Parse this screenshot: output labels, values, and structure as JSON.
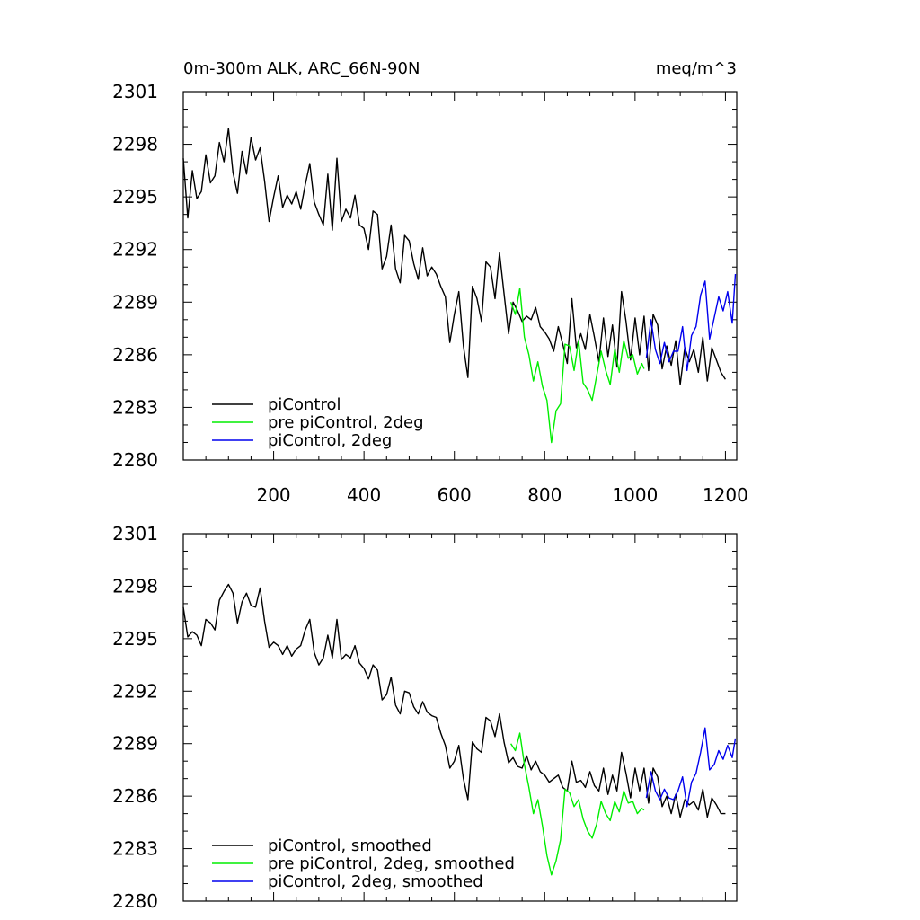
{
  "header": {
    "left_title": "0m-300m ALK, ARC_66N-90N",
    "right_title": "meq/m^3"
  },
  "colors": {
    "piControl": "#000000",
    "pre_piControl_2deg": "#00ee00",
    "piControl_2deg": "#0000ee"
  },
  "chart_data": [
    {
      "type": "line",
      "title": "0m-300m ALK, ARC_66N-90N",
      "units_label": "meq/m^3",
      "xlim": [
        0,
        1225
      ],
      "ylim": [
        2280,
        2301
      ],
      "x_ticks": [
        200,
        400,
        600,
        800,
        1000,
        1200
      ],
      "x_tick_labels": [
        "200",
        "400",
        "600",
        "800",
        "1000",
        "1200"
      ],
      "y_ticks": [
        2280,
        2283,
        2286,
        2289,
        2292,
        2295,
        2298,
        2301
      ],
      "y_tick_labels": [
        "2280",
        "2283",
        "2286",
        "2289",
        "2292",
        "2295",
        "2298",
        "2301"
      ],
      "grid": false,
      "legend": "bottom-left",
      "series": [
        {
          "name": "piControl",
          "color": "#000000",
          "x": [
            0,
            10,
            20,
            30,
            40,
            50,
            60,
            70,
            80,
            90,
            100,
            110,
            120,
            130,
            140,
            150,
            160,
            170,
            180,
            190,
            200,
            210,
            220,
            230,
            240,
            250,
            260,
            270,
            280,
            290,
            300,
            310,
            320,
            330,
            340,
            350,
            360,
            370,
            380,
            390,
            400,
            410,
            420,
            430,
            440,
            450,
            460,
            470,
            480,
            490,
            500,
            510,
            520,
            530,
            540,
            550,
            560,
            570,
            580,
            590,
            600,
            610,
            620,
            630,
            640,
            650,
            660,
            670,
            680,
            690,
            700,
            710,
            720,
            730,
            740,
            750,
            760,
            770,
            780,
            790,
            800,
            810,
            820,
            830,
            840,
            850,
            860,
            870,
            880,
            890,
            900,
            910,
            920,
            930,
            940,
            950,
            960,
            970,
            980,
            990,
            1000,
            1010,
            1020,
            1030,
            1040,
            1050,
            1060,
            1070,
            1080,
            1090,
            1100,
            1110,
            1120,
            1130,
            1140,
            1150,
            1160,
            1170,
            1180,
            1190,
            1200
          ],
          "values": [
            2297.2,
            2293.8,
            2296.5,
            2294.9,
            2295.3,
            2297.4,
            2295.8,
            2296.2,
            2298.1,
            2297.0,
            2298.9,
            2296.4,
            2295.2,
            2297.6,
            2296.3,
            2298.4,
            2297.1,
            2297.8,
            2295.9,
            2293.6,
            2295.0,
            2296.2,
            2294.4,
            2295.1,
            2294.6,
            2295.3,
            2294.3,
            2295.7,
            2296.9,
            2294.7,
            2294.0,
            2293.4,
            2296.3,
            2293.1,
            2297.2,
            2293.6,
            2294.3,
            2293.8,
            2295.1,
            2293.4,
            2293.2,
            2292.0,
            2294.2,
            2294.0,
            2290.9,
            2291.6,
            2293.4,
            2290.9,
            2290.1,
            2292.8,
            2292.5,
            2291.2,
            2290.3,
            2292.1,
            2290.5,
            2291.0,
            2290.6,
            2289.9,
            2289.3,
            2286.7,
            2288.3,
            2289.6,
            2286.5,
            2284.7,
            2289.9,
            2289.2,
            2287.9,
            2291.3,
            2291.0,
            2289.2,
            2291.8,
            2289.5,
            2287.2,
            2289.0,
            2288.5,
            2287.9,
            2288.2,
            2288.0,
            2288.7,
            2287.6,
            2287.3,
            2286.9,
            2286.2,
            2287.6,
            2286.6,
            2285.5,
            2289.2,
            2286.4,
            2287.2,
            2286.3,
            2288.3,
            2287.0,
            2285.6,
            2288.1,
            2285.9,
            2287.7,
            2285.3,
            2289.6,
            2287.9,
            2285.7,
            2288.1,
            2286.0,
            2288.2,
            2285.1,
            2288.3,
            2287.7,
            2285.2,
            2286.5,
            2285.4,
            2286.8,
            2284.3,
            2286.4,
            2285.6,
            2286.3,
            2285.0,
            2287.0,
            2284.5,
            2286.4,
            2285.7,
            2285.0,
            2284.6
          ]
        },
        {
          "name": "pre piControl, 2deg",
          "color": "#00ee00",
          "x": [
            725,
            735,
            745,
            755,
            765,
            775,
            785,
            795,
            805,
            815,
            825,
            835,
            845,
            855,
            865,
            875,
            885,
            895,
            905,
            915,
            925,
            935,
            945,
            955,
            965,
            975,
            985,
            995,
            1005,
            1015,
            1020
          ],
          "values": [
            2289.0,
            2288.3,
            2289.8,
            2287.0,
            2286.0,
            2284.5,
            2285.6,
            2284.2,
            2283.4,
            2281.0,
            2282.8,
            2283.2,
            2286.6,
            2286.5,
            2285.1,
            2286.8,
            2284.4,
            2284.0,
            2283.4,
            2284.8,
            2286.2,
            2285.1,
            2284.3,
            2286.3,
            2285.0,
            2286.8,
            2285.8,
            2286.0,
            2284.9,
            2285.5,
            2285.2
          ]
        },
        {
          "name": "piControl, 2deg",
          "color": "#0000ee",
          "x": [
            1025,
            1035,
            1045,
            1055,
            1065,
            1075,
            1085,
            1095,
            1105,
            1115,
            1125,
            1135,
            1145,
            1155,
            1165,
            1175,
            1185,
            1195,
            1205,
            1215,
            1222
          ],
          "values": [
            2285.8,
            2288.0,
            2286.3,
            2285.5,
            2286.7,
            2285.6,
            2286.2,
            2286.2,
            2287.6,
            2285.1,
            2287.1,
            2287.6,
            2289.4,
            2290.2,
            2286.9,
            2288.1,
            2289.3,
            2288.5,
            2289.6,
            2287.8,
            2290.6
          ]
        }
      ]
    },
    {
      "type": "line",
      "xlim": [
        0,
        1225
      ],
      "ylim": [
        2280,
        2301
      ],
      "x_ticks": [
        200,
        400,
        600,
        800,
        1000,
        1200
      ],
      "y_ticks": [
        2280,
        2283,
        2286,
        2289,
        2292,
        2295,
        2298,
        2301
      ],
      "y_tick_labels": [
        "2280",
        "2283",
        "2286",
        "2289",
        "2292",
        "2295",
        "2298",
        "2301"
      ],
      "grid": false,
      "legend": "bottom-left",
      "series": [
        {
          "name": "piControl, smoothed",
          "color": "#000000",
          "x": [
            0,
            10,
            20,
            30,
            40,
            50,
            60,
            70,
            80,
            90,
            100,
            110,
            120,
            130,
            140,
            150,
            160,
            170,
            180,
            190,
            200,
            210,
            220,
            230,
            240,
            250,
            260,
            270,
            280,
            290,
            300,
            310,
            320,
            330,
            340,
            350,
            360,
            370,
            380,
            390,
            400,
            410,
            420,
            430,
            440,
            450,
            460,
            470,
            480,
            490,
            500,
            510,
            520,
            530,
            540,
            550,
            560,
            570,
            580,
            590,
            600,
            610,
            620,
            630,
            640,
            650,
            660,
            670,
            680,
            690,
            700,
            710,
            720,
            730,
            740,
            750,
            760,
            770,
            780,
            790,
            800,
            810,
            820,
            830,
            840,
            850,
            860,
            870,
            880,
            890,
            900,
            910,
            920,
            930,
            940,
            950,
            960,
            970,
            980,
            990,
            1000,
            1010,
            1020,
            1030,
            1040,
            1050,
            1060,
            1070,
            1080,
            1090,
            1100,
            1110,
            1120,
            1130,
            1140,
            1150,
            1160,
            1170,
            1180,
            1190,
            1200
          ],
          "values": [
            2296.8,
            2295.1,
            2295.4,
            2295.2,
            2294.6,
            2296.1,
            2295.9,
            2295.5,
            2297.2,
            2297.7,
            2298.1,
            2297.6,
            2295.9,
            2297.1,
            2297.6,
            2296.9,
            2296.8,
            2297.9,
            2296.0,
            2294.5,
            2294.8,
            2294.6,
            2294.1,
            2294.6,
            2294.0,
            2294.4,
            2294.6,
            2295.5,
            2296.1,
            2294.2,
            2293.5,
            2293.9,
            2295.2,
            2293.9,
            2296.1,
            2293.8,
            2294.1,
            2293.9,
            2294.6,
            2293.6,
            2293.3,
            2292.7,
            2293.5,
            2293.2,
            2291.5,
            2291.8,
            2292.8,
            2291.2,
            2290.7,
            2292.0,
            2291.9,
            2291.1,
            2290.7,
            2291.4,
            2290.8,
            2290.6,
            2290.5,
            2289.6,
            2288.9,
            2287.6,
            2288.0,
            2288.9,
            2287.0,
            2285.8,
            2289.1,
            2288.7,
            2288.5,
            2290.5,
            2290.3,
            2289.4,
            2290.7,
            2289.1,
            2287.9,
            2288.2,
            2287.7,
            2287.6,
            2288.3,
            2287.5,
            2288.0,
            2287.4,
            2287.2,
            2286.8,
            2287.0,
            2287.2,
            2286.5,
            2286.3,
            2288.0,
            2286.8,
            2286.9,
            2286.5,
            2287.4,
            2286.6,
            2286.3,
            2287.6,
            2286.1,
            2287.2,
            2286.3,
            2288.5,
            2287.3,
            2285.9,
            2287.6,
            2286.3,
            2287.6,
            2285.6,
            2287.6,
            2287.1,
            2285.4,
            2286.0,
            2285.0,
            2286.1,
            2284.8,
            2285.8,
            2285.5,
            2285.7,
            2285.2,
            2286.4,
            2284.8,
            2285.9,
            2285.5,
            2285.0,
            2285.0
          ]
        },
        {
          "name": "pre piControl, 2deg, smoothed",
          "color": "#00ee00",
          "x": [
            725,
            735,
            745,
            755,
            765,
            775,
            785,
            795,
            805,
            815,
            825,
            835,
            845,
            855,
            865,
            875,
            885,
            895,
            905,
            915,
            925,
            935,
            945,
            955,
            965,
            975,
            985,
            995,
            1005,
            1015,
            1020
          ],
          "values": [
            2289.0,
            2288.6,
            2289.6,
            2287.8,
            2286.5,
            2285.0,
            2285.8,
            2284.3,
            2282.6,
            2281.5,
            2282.3,
            2283.5,
            2286.4,
            2286.2,
            2285.4,
            2285.8,
            2284.7,
            2284.0,
            2283.6,
            2284.4,
            2285.7,
            2285.0,
            2284.6,
            2285.7,
            2285.1,
            2286.3,
            2285.6,
            2285.7,
            2285.0,
            2285.3,
            2285.2
          ]
        },
        {
          "name": "piControl, 2deg, smoothed",
          "color": "#0000ee",
          "x": [
            1025,
            1035,
            1045,
            1055,
            1065,
            1075,
            1085,
            1095,
            1105,
            1115,
            1125,
            1135,
            1145,
            1155,
            1165,
            1175,
            1185,
            1195,
            1205,
            1215,
            1222
          ],
          "values": [
            2285.9,
            2287.4,
            2286.3,
            2285.8,
            2286.4,
            2285.9,
            2285.8,
            2286.3,
            2287.1,
            2285.4,
            2286.8,
            2287.3,
            2288.5,
            2289.9,
            2287.5,
            2287.8,
            2288.6,
            2288.1,
            2288.9,
            2288.2,
            2289.3
          ]
        }
      ]
    }
  ]
}
